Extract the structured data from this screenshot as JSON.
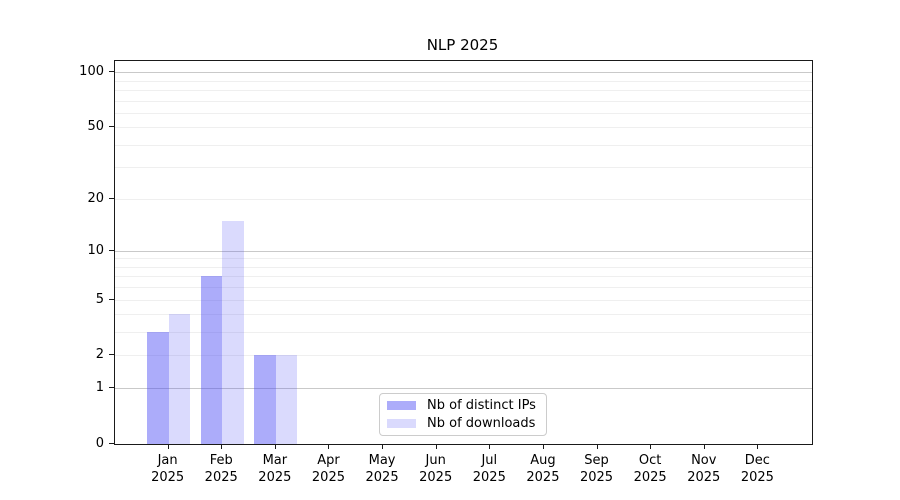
{
  "chart_data": {
    "type": "bar",
    "title": "NLP 2025",
    "categories": [
      "Jan",
      "Feb",
      "Mar",
      "Apr",
      "May",
      "Jun",
      "Jul",
      "Aug",
      "Sep",
      "Oct",
      "Nov",
      "Dec"
    ],
    "x_year_label": "2025",
    "series": [
      {
        "name": "Nb of distinct IPs",
        "color": "#aaaaf8",
        "fill": "rgba(70,70,245,0.45)",
        "values": [
          3,
          7,
          2,
          0,
          0,
          0,
          0,
          0,
          0,
          0,
          0,
          0
        ]
      },
      {
        "name": "Nb of downloads",
        "color": "#dadafb",
        "fill": "rgba(70,70,245,0.20)",
        "values": [
          4,
          15,
          2,
          0,
          0,
          0,
          0,
          0,
          0,
          0,
          0,
          0
        ]
      }
    ],
    "y_axis": {
      "scale": "log1p",
      "ticks": [
        0,
        1,
        2,
        5,
        10,
        20,
        50,
        100
      ],
      "max": 115
    },
    "grid": {
      "major_values": [
        1,
        10,
        100
      ],
      "minor_values": [
        2,
        3,
        4,
        5,
        6,
        7,
        8,
        9,
        20,
        30,
        40,
        50,
        60,
        70,
        80,
        90
      ],
      "major_color": "#c9c9c9",
      "minor_color": "#efefef"
    },
    "legend": {
      "position": "lower center",
      "entries": [
        "Nb of distinct IPs",
        "Nb of downloads"
      ]
    },
    "xlabel": "",
    "ylabel": ""
  }
}
